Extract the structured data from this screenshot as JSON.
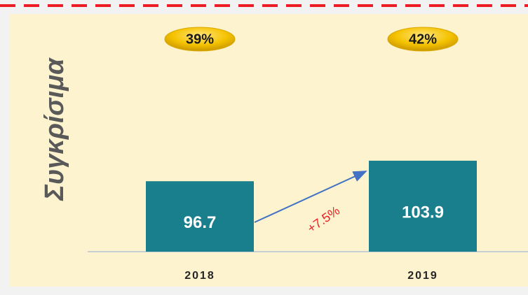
{
  "chart_data": {
    "type": "bar",
    "y_label": "Συγκρίσιμα",
    "categories": [
      "2018",
      "2019"
    ],
    "values": [
      96.7,
      103.9
    ],
    "color": "#1a7f8c",
    "ylim": [
      72,
      110
    ],
    "badge_values": [
      39,
      42
    ],
    "badge_labels": [
      "39%",
      "42%"
    ],
    "annotation": "+7.5%"
  }
}
